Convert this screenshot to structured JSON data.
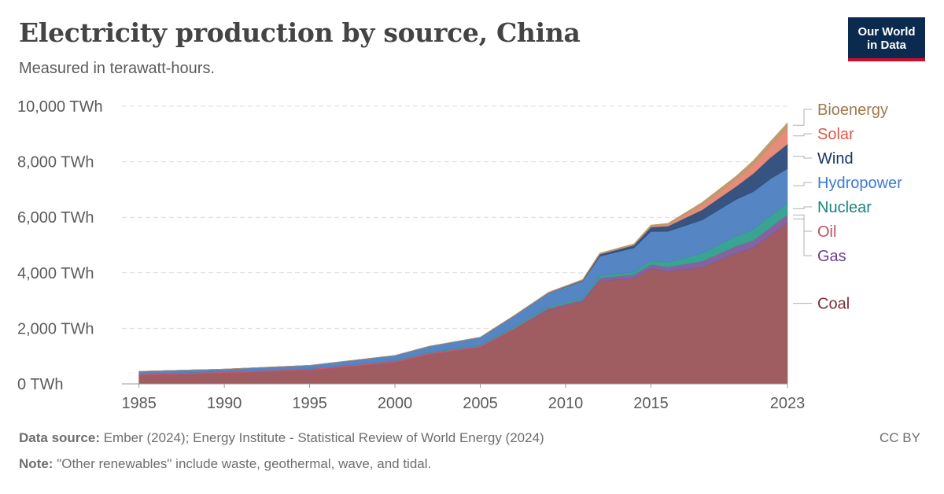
{
  "header": {
    "title": "Electricity production by source, China",
    "subtitle": "Measured in terawatt-hours."
  },
  "logo": {
    "line1": "Our World",
    "line2": "in Data",
    "bg": "#0b2a4f",
    "accent": "#c8102e"
  },
  "footer": {
    "source_label": "Data source:",
    "source_text": "Ember (2024); Energy Institute - Statistical Review of World Energy (2024)",
    "note_label": "Note:",
    "note_text": "\"Other renewables\" include waste, geothermal, wave, and tidal.",
    "license": "CC BY"
  },
  "chart_data": {
    "type": "area",
    "stacked": true,
    "title": "Electricity production by source, China",
    "subtitle": "Measured in terawatt-hours.",
    "x": [
      1985,
      1990,
      1995,
      2000,
      2002,
      2005,
      2007,
      2009,
      2011,
      2012,
      2014,
      2015,
      2016,
      2018,
      2020,
      2021,
      2022,
      2023
    ],
    "xlim": [
      1984,
      2023
    ],
    "x_ticks": [
      1985,
      1990,
      1995,
      2000,
      2005,
      2010,
      2015,
      2023
    ],
    "y_ticks": [
      0,
      2000,
      4000,
      6000,
      8000,
      10000
    ],
    "y_tick_labels": [
      "0 TWh",
      "2,000 TWh",
      "4,000 TWh",
      "6,000 TWh",
      "8,000 TWh",
      "10,000 TWh"
    ],
    "ylim": [
      0,
      10000
    ],
    "grid": "horizontal dashed",
    "legend": "right, direct labels",
    "series": [
      {
        "name": "Coal",
        "color": "#9a5459",
        "label_color": "#7a2d36",
        "values": [
          300,
          380,
          480,
          760,
          1050,
          1300,
          1950,
          2650,
          2950,
          3700,
          3800,
          4150,
          4050,
          4200,
          4700,
          4900,
          5350,
          5800
        ]
      },
      {
        "name": "Gas",
        "color": "#7e5a9e",
        "label_color": "#6d3e91",
        "values": [
          1,
          1,
          1,
          2,
          5,
          7,
          13,
          50,
          55,
          100,
          120,
          133,
          150,
          200,
          250,
          250,
          270,
          280
        ]
      },
      {
        "name": "Oil",
        "color": "#c15065",
        "label_color": "#c15065",
        "values": [
          60,
          60,
          60,
          60,
          60,
          60,
          50,
          30,
          15,
          10,
          10,
          10,
          10,
          10,
          10,
          10,
          10,
          10
        ]
      },
      {
        "name": "Nuclear",
        "color": "#2f9f8c",
        "label_color": "#18847a",
        "values": [
          0,
          0,
          0,
          13,
          17,
          25,
          53,
          62,
          70,
          87,
          97,
          133,
          171,
          295,
          366,
          408,
          418,
          435
        ]
      },
      {
        "name": "Hydropower",
        "color": "#4c7fc0",
        "label_color": "#3b7bd0",
        "values": [
          92,
          92,
          127,
          191,
          222,
          288,
          397,
          485,
          616,
          699,
          872,
          1064,
          1114,
          1198,
          1322,
          1355,
          1339,
          1227
        ]
      },
      {
        "name": "Wind",
        "color": "#2c4a78",
        "label_color": "#15366b",
        "values": [
          0,
          0,
          0,
          0,
          1,
          1,
          2,
          6,
          27,
          70,
          96,
          156,
          186,
          366,
          466,
          656,
          762,
          886
        ]
      },
      {
        "name": "Solar",
        "color": "#e58672",
        "label_color": "#e0584a",
        "values": [
          0,
          0,
          0,
          0,
          0,
          0,
          0,
          0,
          0,
          2,
          4,
          24,
          45,
          178,
          261,
          327,
          427,
          584
        ]
      },
      {
        "name": "Bioenergy",
        "color": "#b99766",
        "label_color": "#a0794c",
        "values": [
          0,
          0,
          0,
          0,
          2,
          4,
          10,
          20,
          30,
          40,
          45,
          50,
          55,
          90,
          112,
          136,
          152,
          180
        ]
      }
    ]
  }
}
